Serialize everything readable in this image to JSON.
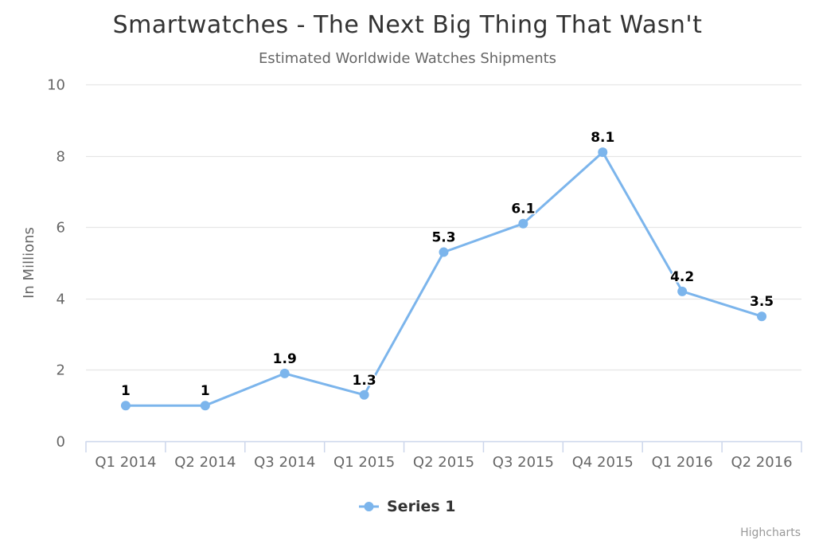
{
  "chart_data": {
    "type": "line",
    "title": "Smartwatches - The Next Big Thing That Wasn't",
    "subtitle": "Estimated Worldwide Watches Shipments",
    "xlabel": "",
    "ylabel": "In Millions",
    "categories": [
      "Q1 2014",
      "Q2 2014",
      "Q3 2014",
      "Q1 2015",
      "Q2 2015",
      "Q3 2015",
      "Q4 2015",
      "Q1 2016",
      "Q2 2016"
    ],
    "series": [
      {
        "name": "Series 1",
        "values": [
          1,
          1,
          1.9,
          1.3,
          5.3,
          6.1,
          8.1,
          4.2,
          3.5
        ],
        "color": "#7cb5ec"
      }
    ],
    "ylim": [
      0,
      10
    ],
    "yticks": [
      "0",
      "2",
      "4",
      "6",
      "8",
      "10"
    ],
    "grid": true,
    "data_labels": true,
    "legend": "bottom-center",
    "credits": "Highcharts",
    "colors": {
      "gridline": "#e6e6e6",
      "axis_line": "#ccd6eb",
      "series": "#7cb5ec"
    }
  }
}
